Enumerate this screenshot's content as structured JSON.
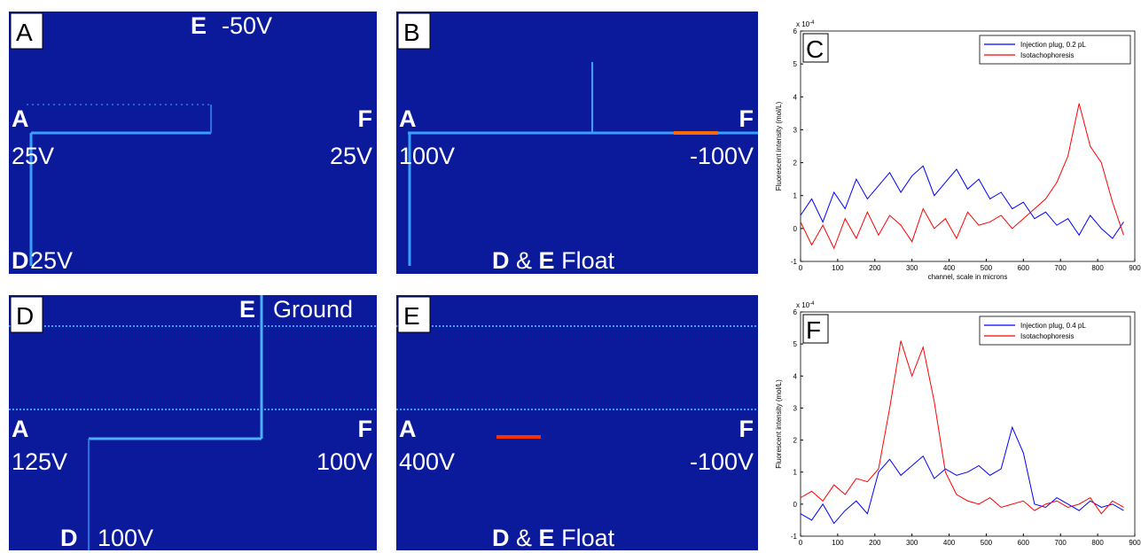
{
  "panels": [
    {
      "label": "A",
      "texts": [
        "E",
        "-50V",
        "A",
        "25V",
        "F",
        "25V",
        "D",
        "25V"
      ]
    },
    {
      "label": "B",
      "texts": [
        "A",
        "100V",
        "F",
        "-100V",
        "D",
        "&",
        "E",
        "Float"
      ]
    },
    {
      "label": "D",
      "texts": [
        "E",
        "Ground",
        "A",
        "125V",
        "F",
        "100V",
        "D",
        "100V"
      ]
    },
    {
      "label": "E",
      "texts": [
        "A",
        "400V",
        "F",
        "-100V",
        "D",
        "&",
        "E",
        "Float"
      ]
    }
  ],
  "chart_data": [
    {
      "type": "line",
      "panel_label": "C",
      "y_multiplier": "x 10",
      "y_multiplier_exponent": "-4",
      "xlabel": "channel, scale in microns",
      "ylabel": "Fluorescent intensity (mol/L)",
      "xlim": [
        0,
        900
      ],
      "xticks": [
        0,
        100,
        200,
        300,
        400,
        500,
        600,
        700,
        800,
        900
      ],
      "ylim": [
        -1,
        6
      ],
      "yticks": [
        -1,
        0,
        1,
        2,
        3,
        4,
        5,
        6
      ],
      "legend": "upper right",
      "x": [
        0,
        30,
        60,
        90,
        120,
        150,
        180,
        210,
        240,
        270,
        300,
        330,
        360,
        390,
        420,
        450,
        480,
        510,
        540,
        570,
        600,
        630,
        660,
        690,
        720,
        750,
        780,
        810,
        840,
        870
      ],
      "series": [
        {
          "name": "Injection plug, 0.2 pL",
          "color": "#0000ff",
          "values": [
            0.4,
            0.9,
            0.2,
            1.1,
            0.6,
            1.5,
            0.9,
            1.3,
            1.7,
            1.1,
            1.6,
            1.9,
            1.0,
            1.4,
            1.8,
            1.2,
            1.5,
            0.9,
            1.1,
            0.6,
            0.8,
            0.3,
            0.5,
            0.1,
            0.3,
            -0.2,
            0.4,
            0.0,
            -0.3,
            0.2
          ]
        },
        {
          "name": "Isotachophoresis",
          "color": "#ff0000",
          "values": [
            0.2,
            -0.5,
            0.1,
            -0.6,
            0.3,
            -0.3,
            0.5,
            -0.2,
            0.4,
            0.1,
            -0.4,
            0.6,
            0.0,
            0.3,
            -0.3,
            0.5,
            0.1,
            0.2,
            0.4,
            0.0,
            0.3,
            0.6,
            0.9,
            1.4,
            2.2,
            3.8,
            2.5,
            2.0,
            0.8,
            -0.2
          ]
        }
      ]
    },
    {
      "type": "line",
      "panel_label": "F",
      "y_multiplier": "x 10",
      "y_multiplier_exponent": "-4",
      "ylabel": "Fluorescent intensity (mol/L)",
      "xlim": [
        0,
        900
      ],
      "xticks": [
        0,
        100,
        200,
        300,
        400,
        500,
        600,
        700,
        800,
        900
      ],
      "ylim": [
        -1,
        6
      ],
      "yticks": [
        -1,
        0,
        1,
        2,
        3,
        4,
        5,
        6
      ],
      "legend": "upper right",
      "x": [
        0,
        30,
        60,
        90,
        120,
        150,
        180,
        210,
        240,
        270,
        300,
        330,
        360,
        390,
        420,
        450,
        480,
        510,
        540,
        570,
        600,
        630,
        660,
        690,
        720,
        750,
        780,
        810,
        840,
        870
      ],
      "series": [
        {
          "name": "Injection plug, 0.4 pL",
          "color": "#0000ff",
          "values": [
            -0.3,
            -0.5,
            0.0,
            -0.6,
            -0.2,
            0.1,
            -0.3,
            1.0,
            1.4,
            0.9,
            1.2,
            1.5,
            0.8,
            1.1,
            0.9,
            1.0,
            1.2,
            0.9,
            1.1,
            2.4,
            1.6,
            0.0,
            -0.1,
            0.2,
            0.0,
            -0.2,
            0.1,
            -0.1,
            0.0,
            -0.2
          ]
        },
        {
          "name": "Isotachophoresis",
          "color": "#ff0000",
          "values": [
            0.2,
            0.4,
            0.1,
            0.6,
            0.3,
            0.8,
            0.7,
            1.1,
            3.0,
            5.1,
            4.0,
            4.9,
            3.2,
            1.0,
            0.3,
            0.1,
            0.0,
            0.2,
            -0.1,
            0.0,
            0.1,
            -0.2,
            0.0,
            0.1,
            -0.1,
            0.0,
            0.2,
            -0.3,
            0.1,
            -0.1
          ]
        }
      ]
    }
  ]
}
